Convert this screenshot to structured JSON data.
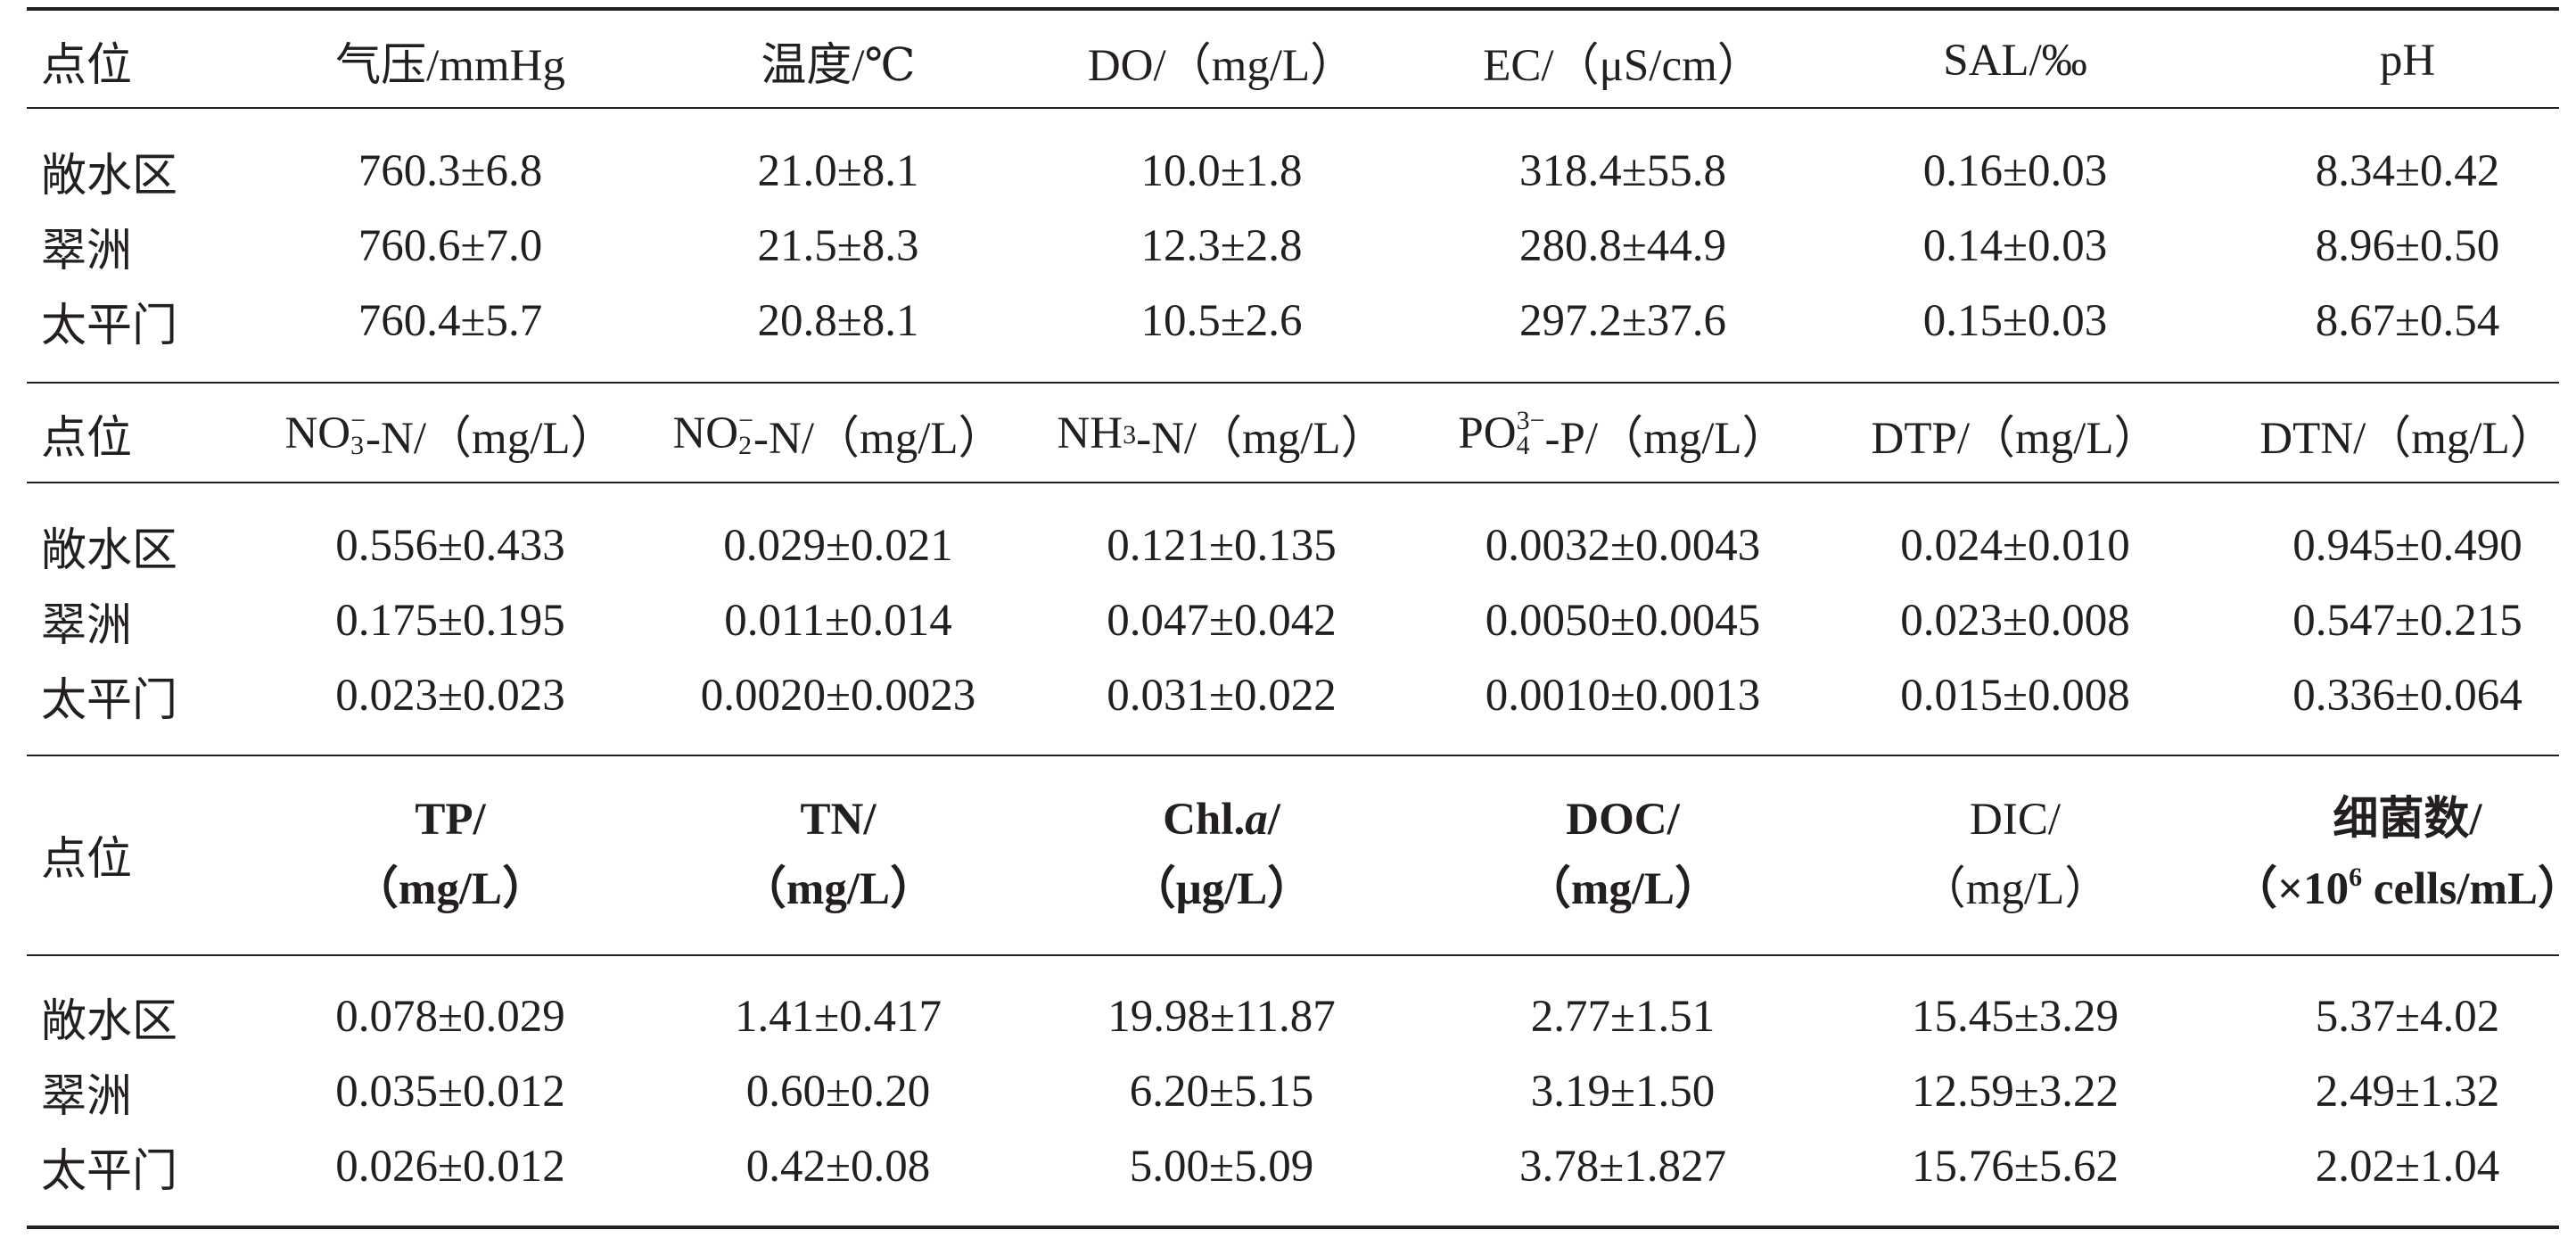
{
  "sections": [
    {
      "headers": [
        "点位",
        "气压/mmHg",
        "温度/℃",
        "DO/（mg/L）",
        "EC/（μS/cm）",
        "SAL/‰",
        "pH"
      ],
      "rows": [
        [
          "敞水区",
          "760.3±6.8",
          "21.0±8.1",
          "10.0±1.8",
          "318.4±55.8",
          "0.16±0.03",
          "8.34±0.42"
        ],
        [
          "翠洲",
          "760.6±7.0",
          "21.5±8.3",
          "12.3±2.8",
          "280.8±44.9",
          "0.14±0.03",
          "8.96±0.50"
        ],
        [
          "太平门",
          "760.4±5.7",
          "20.8±8.1",
          "10.5±2.6",
          "297.2±37.6",
          "0.15±0.03",
          "8.67±0.54"
        ]
      ]
    },
    {
      "headers": {
        "site": "点位",
        "no3": {
          "base": "NO",
          "sub": "3",
          "sup": "−",
          "rest": "-N/（mg/L）"
        },
        "no2": {
          "base": "NO",
          "sub": "2",
          "sup": "−",
          "rest": "-N/（mg/L）"
        },
        "nh3": {
          "base": "NH",
          "sub": "3",
          "rest": "-N/（mg/L）"
        },
        "po4": {
          "base": "PO",
          "sub": "4",
          "sup": "3−",
          "rest": "-P/（mg/L）"
        },
        "dtp": "DTP/（mg/L）",
        "dtn": "DTN/（mg/L）"
      },
      "rows": [
        [
          "敞水区",
          "0.556±0.433",
          "0.029±0.021",
          "0.121±0.135",
          "0.0032±0.0043",
          "0.024±0.010",
          "0.945±0.490"
        ],
        [
          "翠洲",
          "0.175±0.195",
          "0.011±0.014",
          "0.047±0.042",
          "0.0050±0.0045",
          "0.023±0.008",
          "0.547±0.215"
        ],
        [
          "太平门",
          "0.023±0.023",
          "0.0020±0.0023",
          "0.031±0.022",
          "0.0010±0.0013",
          "0.015±0.008",
          "0.336±0.064"
        ]
      ]
    },
    {
      "headers": {
        "site": "点位",
        "tp": [
          "TP/",
          "（mg/L）"
        ],
        "tn": [
          "TN/",
          "（mg/L）"
        ],
        "chl": {
          "line1a": "Chl.",
          "line1b": "a",
          "line1c": "/",
          "line2": "（μg/L）"
        },
        "doc": [
          "DOC/",
          "（mg/L）"
        ],
        "dic": [
          "DIC/",
          "（mg/L）"
        ],
        "bact": {
          "line1": "细菌数/",
          "line2a": "（×10",
          "line2sup": "6",
          "line2b": " cells/mL）"
        }
      },
      "rows": [
        [
          "敞水区",
          "0.078±0.029",
          "1.41±0.417",
          "19.98±11.87",
          "2.77±1.51",
          "15.45±3.29",
          "5.37±4.02"
        ],
        [
          "翠洲",
          "0.035±0.012",
          "0.60±0.20",
          "6.20±5.15",
          "3.19±1.50",
          "12.59±3.22",
          "2.49±1.32"
        ],
        [
          "太平门",
          "0.026±0.012",
          "0.42±0.08",
          "5.00±5.09",
          "3.78±1.827",
          "15.76±5.62",
          "2.02±1.04"
        ]
      ]
    }
  ]
}
